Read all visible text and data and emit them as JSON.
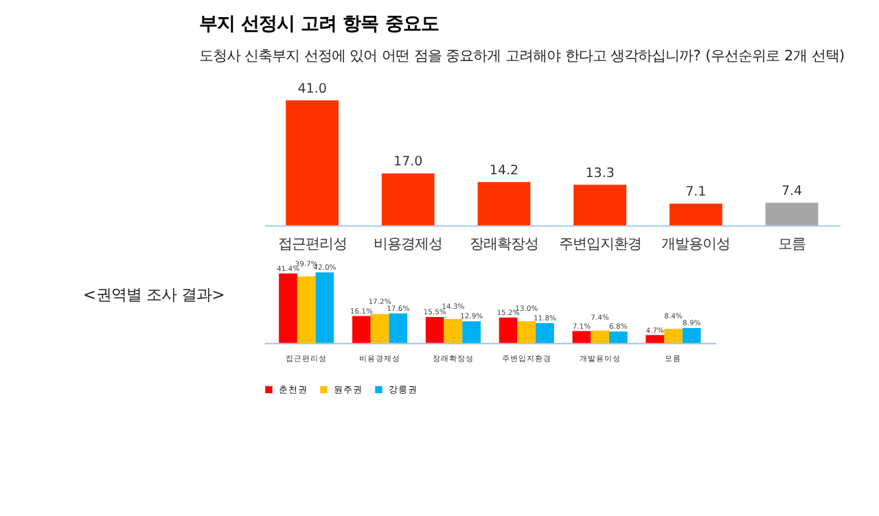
{
  "chart_data": [
    {
      "type": "bar",
      "title": "부지 선정시 고려 항목 중요도",
      "subtitle": "도청사 신축부지 선정에 있어 어떤 점을 중요하게 고려해야 한다고 생각하십니까? (우선순위로 2개 선택)",
      "categories": [
        "접근편리성",
        "비용경제성",
        "장래확장성",
        "주변입지환경",
        "개발용이성",
        "모름"
      ],
      "values": [
        41.0,
        17.0,
        14.2,
        13.3,
        7.1,
        7.4
      ],
      "colors": [
        "#ff3300",
        "#ff3300",
        "#ff3300",
        "#ff3300",
        "#ff3300",
        "#a6a6a6"
      ],
      "value_labels": [
        "41.0",
        "17.0",
        "14.2",
        "13.3",
        "7.1",
        "7.4"
      ],
      "tick_labels": "x"
    },
    {
      "type": "bar",
      "annotations": [
        "<권역별 조사 결과>"
      ],
      "categories": [
        "접근편리성",
        "비용경제성",
        "장래확장성",
        "주변입지환경",
        "개발용이성",
        "모름"
      ],
      "series": [
        {
          "name": "춘천권",
          "color": "#ff0000",
          "values": [
            41.4,
            16.1,
            15.5,
            15.2,
            7.1,
            4.7
          ],
          "value_labels": [
            "41.4%",
            "16.1%",
            "15.5%",
            "15.2%",
            "7.1%",
            "4.7%"
          ]
        },
        {
          "name": "원주권",
          "color": "#ffc000",
          "values": [
            39.7,
            17.2,
            14.3,
            13.0,
            7.4,
            8.4
          ],
          "value_labels": [
            "39.7%",
            "17.2%",
            "14.3%",
            "13.0%",
            "7.4%",
            "8.4%"
          ]
        },
        {
          "name": "강릉권",
          "color": "#00b0f0",
          "values": [
            42.0,
            17.6,
            12.9,
            11.8,
            6.8,
            8.9
          ],
          "value_labels": [
            "42.0%",
            "17.6%",
            "12.9%",
            "11.8%",
            "6.8%",
            "8.9%"
          ]
        }
      ],
      "tick_labels": "x",
      "legend": "bottom"
    }
  ]
}
